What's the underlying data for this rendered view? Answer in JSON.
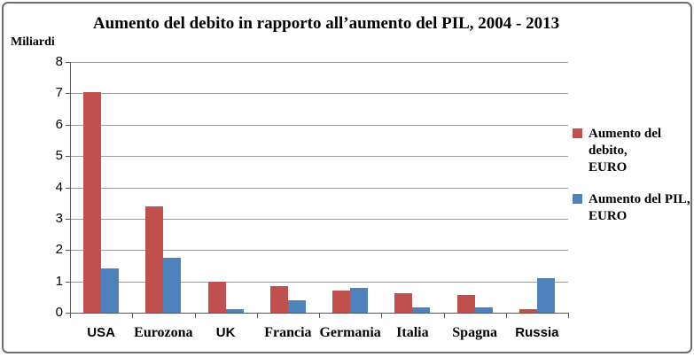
{
  "title": "Aumento del debito in rapporto all’aumento del PIL, 2004 - 2013",
  "unit_label": "Miliardi",
  "chart_data": {
    "type": "bar",
    "title": "Aumento del debito in rapporto all’aumento del PIL, 2004 - 2013",
    "ylabel": "Miliardi",
    "categories": [
      "USA",
      "Eurozona",
      "UK",
      "Francia",
      "Germania",
      "Italia",
      "Spagna",
      "Russia"
    ],
    "series": [
      {
        "name": "Aumento del debito, EURO",
        "legend_lines": [
          "Aumento del debito,",
          "EURO"
        ],
        "color": "#c0504d",
        "values": [
          7.05,
          3.4,
          1.0,
          0.85,
          0.7,
          0.62,
          0.57,
          0.1
        ]
      },
      {
        "name": "Aumento del PIL, EURO",
        "legend_lines": [
          "Aumento del PIL,",
          "EURO"
        ],
        "color": "#4f81bd",
        "values": [
          1.4,
          1.75,
          0.12,
          0.4,
          0.8,
          0.18,
          0.18,
          1.1
        ]
      }
    ],
    "ylim": [
      0,
      8
    ],
    "ytick_step": 1,
    "grid": true,
    "legend_position": "right",
    "category_label_serif": [
      false,
      true,
      false,
      true,
      true,
      true,
      true,
      false
    ]
  }
}
